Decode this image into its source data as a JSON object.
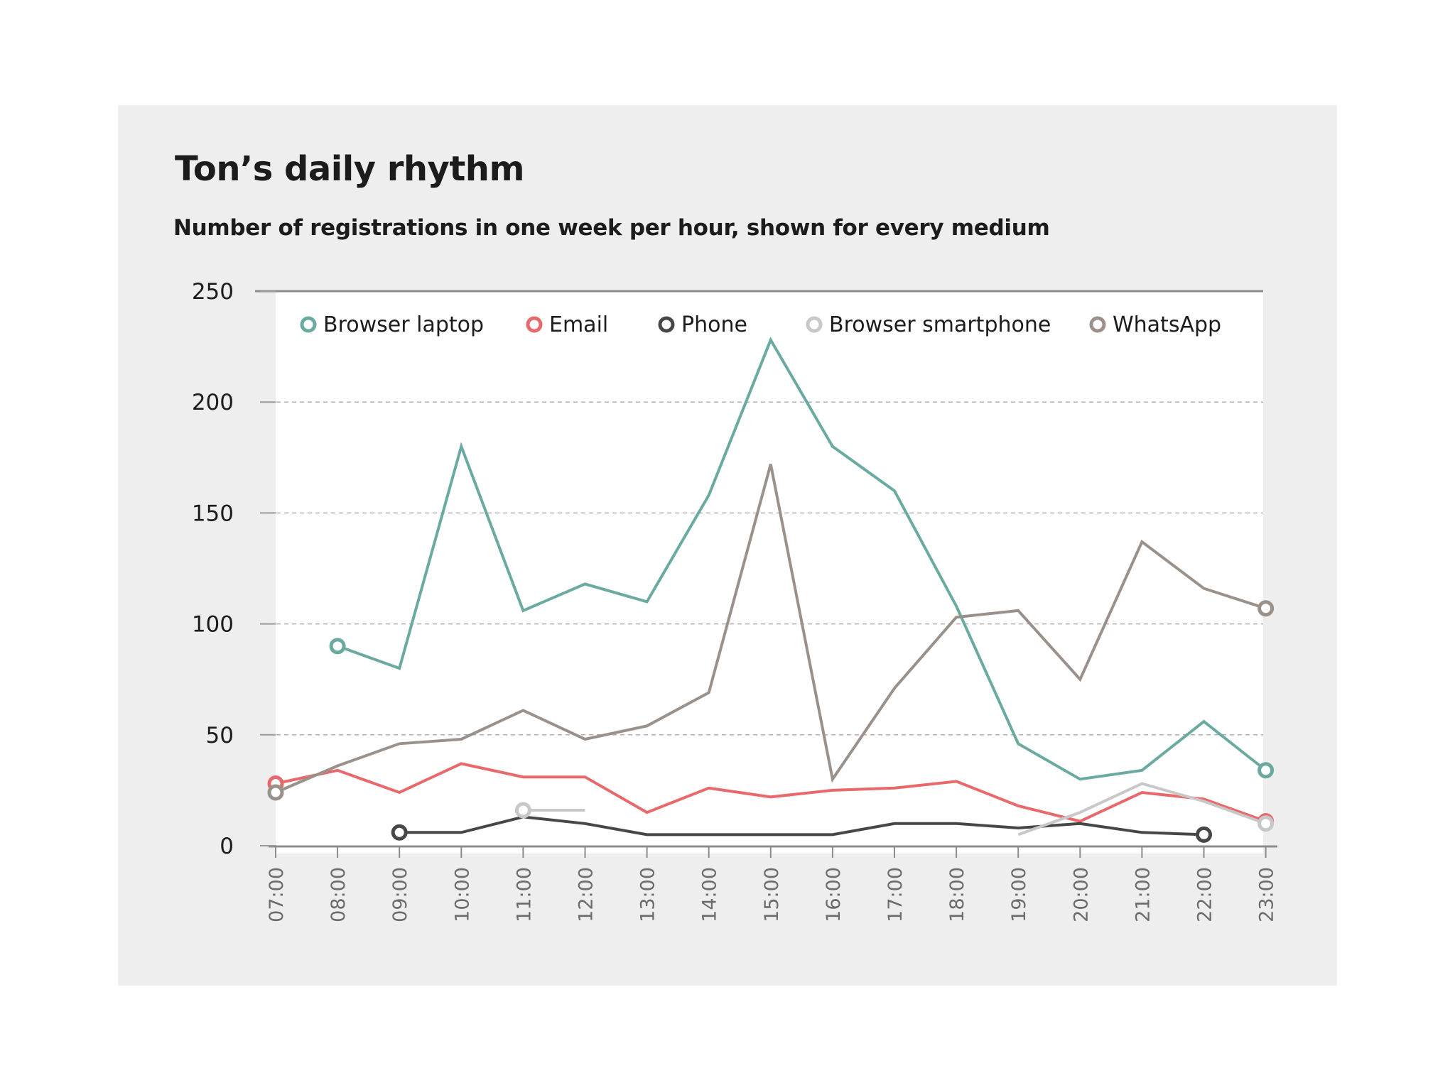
{
  "title": "Ton’s daily rhythm",
  "subtitle": "Number of registrations in one week per hour, shown for every medium",
  "chart_data": {
    "type": "line",
    "title": "Ton’s daily rhythm",
    "subtitle": "Number of registrations in one week per hour, shown for every medium",
    "xlabel": "",
    "ylabel": "",
    "categories": [
      "07:00",
      "08:00",
      "09:00",
      "10:00",
      "11:00",
      "12:00",
      "13:00",
      "14:00",
      "15:00",
      "16:00",
      "17:00",
      "18:00",
      "19:00",
      "20:00",
      "21:00",
      "22:00",
      "23:00"
    ],
    "ylim": [
      0,
      250
    ],
    "yticks": [
      "0",
      "50",
      "100",
      "150",
      "200",
      "250"
    ],
    "grid": true,
    "legend_position": "top",
    "series": [
      {
        "name": "Browser laptop",
        "color": "#6aaaa0",
        "start": 1,
        "values": [
          null,
          90,
          80,
          180,
          106,
          118,
          110,
          158,
          228,
          180,
          160,
          108,
          46,
          30,
          34,
          56,
          34
        ]
      },
      {
        "name": "Email",
        "color": "#e8696c",
        "start": 0,
        "values": [
          28,
          34,
          24,
          37,
          31,
          31,
          15,
          26,
          22,
          25,
          26,
          29,
          18,
          11,
          24,
          21,
          11
        ]
      },
      {
        "name": "Phone",
        "color": "#474747",
        "start": 2,
        "values": [
          null,
          null,
          6,
          6,
          13,
          10,
          5,
          5,
          5,
          5,
          10,
          10,
          8,
          10,
          6,
          5,
          null
        ]
      },
      {
        "name": "Browser smartphone",
        "color": "#c8c8c8",
        "start": 4,
        "values": [
          null,
          null,
          null,
          null,
          16,
          16,
          null,
          null,
          null,
          null,
          null,
          null,
          5,
          15,
          28,
          20,
          10
        ]
      },
      {
        "name": "WhatsApp",
        "color": "#9b918b",
        "start": 0,
        "values": [
          24,
          36,
          46,
          48,
          61,
          48,
          54,
          69,
          172,
          30,
          71,
          103,
          106,
          75,
          137,
          116,
          107
        ]
      }
    ]
  }
}
